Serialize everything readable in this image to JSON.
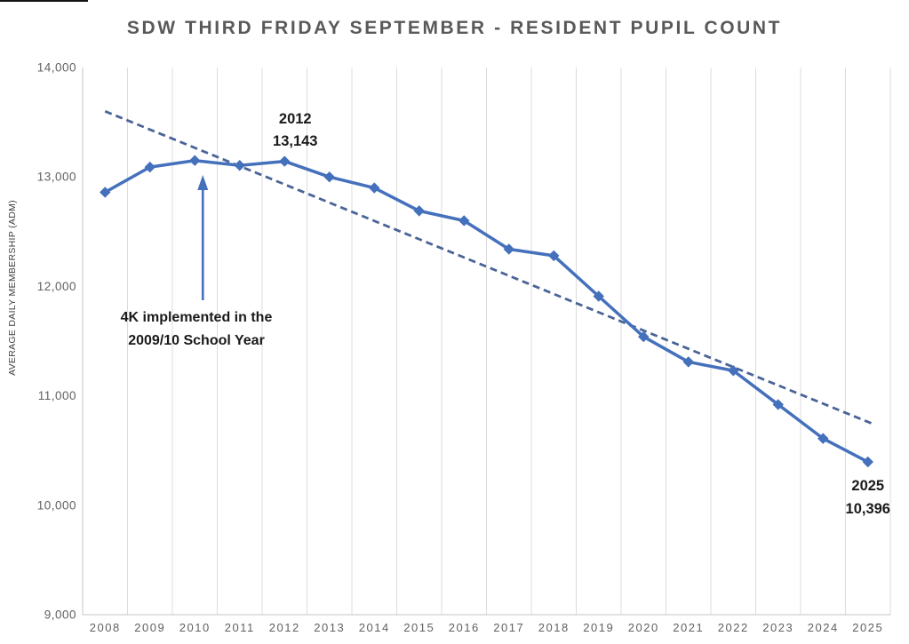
{
  "chart_data": {
    "type": "line",
    "title": "SDW THIRD FRIDAY SEPTEMBER - RESIDENT PUPIL COUNT",
    "ylabel": "AVERAGE DAILY MEMBERSHIP (ADM)",
    "xlabel": "",
    "ylim": [
      9000,
      14000
    ],
    "ytick_step": 1000,
    "ytick_labels": [
      "9,000",
      "10,000",
      "11,000",
      "12,000",
      "13,000",
      "14,000"
    ],
    "grid": "vertical-only",
    "legend": "none",
    "categories": [
      2008,
      2009,
      2010,
      2011,
      2012,
      2013,
      2014,
      2015,
      2016,
      2017,
      2018,
      2019,
      2020,
      2021,
      2022,
      2023,
      2024,
      2025
    ],
    "values": [
      12860,
      13090,
      13150,
      13105,
      13143,
      13000,
      12900,
      12690,
      12600,
      12340,
      12280,
      11910,
      11540,
      11310,
      11230,
      10920,
      10610,
      10396
    ],
    "marker": "diamond",
    "trendline": {
      "style": "dashed",
      "start_year": 2008,
      "start_value": 13600,
      "end_year": 2025.1,
      "end_value": 10745
    },
    "annotations": [
      {
        "name": "peak-2012",
        "lines": [
          "2012",
          "13,143"
        ]
      },
      {
        "name": "value-2025",
        "lines": [
          "2025",
          "10,396"
        ]
      },
      {
        "name": "4k-note",
        "lines": [
          "4K implemented in the",
          "2009/10 School Year"
        ],
        "arrow_target_year": 2010
      }
    ],
    "colors": {
      "series": "#4470BC",
      "trendline": "#4A6398",
      "gridline": "#DCDCDC",
      "axis_line": "#C6C6C6",
      "tick_text": "#616161",
      "title_text": "#595959",
      "annotation_text": "#1A1A1A"
    }
  }
}
